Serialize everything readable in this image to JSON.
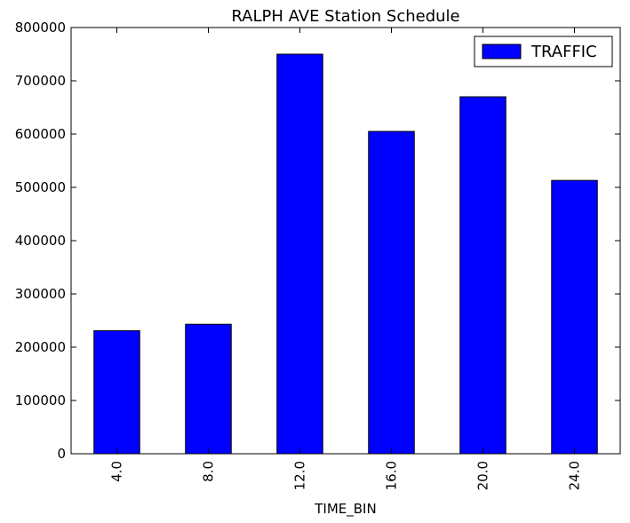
{
  "chart_data": {
    "type": "bar",
    "title": "RALPH AVE Station Schedule",
    "xlabel": "TIME_BIN",
    "ylabel": "",
    "categories": [
      "4.0",
      "8.0",
      "12.0",
      "16.0",
      "20.0",
      "24.0"
    ],
    "series": [
      {
        "name": "TRAFFIC",
        "color": "#0000ff",
        "values": [
          231000,
          243000,
          750000,
          605000,
          670000,
          513000
        ]
      }
    ],
    "ylim": [
      0,
      800000
    ],
    "yticks": [
      "0",
      "100000",
      "200000",
      "300000",
      "400000",
      "500000",
      "600000",
      "700000",
      "800000"
    ],
    "grid": false,
    "legend_position": "top-right"
  }
}
